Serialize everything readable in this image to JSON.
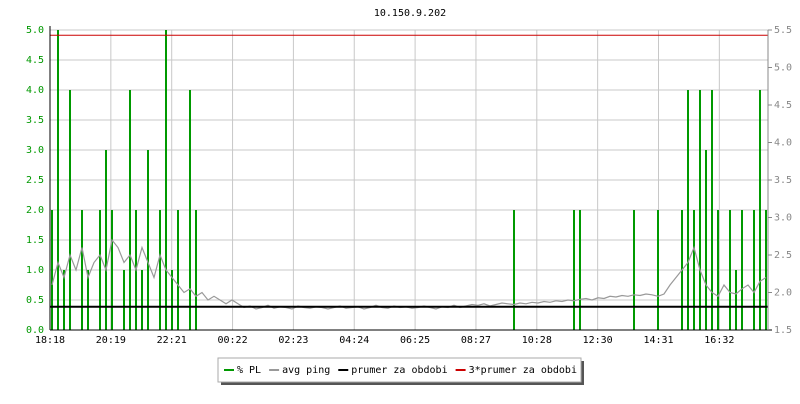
{
  "chart_data": {
    "type": "line",
    "title": "10.150.9.202",
    "xticks": [
      "18:18",
      "20:19",
      "22:21",
      "00:22",
      "02:23",
      "04:24",
      "06:25",
      "08:27",
      "10:28",
      "12:30",
      "14:31",
      "16:32"
    ],
    "ylim": [
      0,
      5
    ],
    "yticks": [
      {
        "value": 0,
        "label": "0.0"
      },
      0.5,
      {
        "value": 1,
        "label": "1.0"
      },
      1.5,
      {
        "value": 2,
        "label": "2.0"
      },
      2.5,
      {
        "value": 3,
        "label": "3.0"
      },
      3.5,
      {
        "value": 4,
        "label": "4.0"
      },
      4.5,
      {
        "value": 5,
        "label": "5.0"
      }
    ],
    "y2lim": [
      1.5,
      5.5
    ],
    "y2ticks": [
      1.5,
      {
        "value": 2,
        "label": "2.0"
      },
      2.5,
      {
        "value": 3,
        "label": "3.0"
      },
      3.5,
      {
        "value": 4,
        "label": "4.0"
      },
      4.5,
      {
        "value": 5,
        "label": "5.0"
      },
      5.5
    ],
    "grid": true,
    "series": [
      {
        "name": "% PL",
        "color": "#009900",
        "style": "bars",
        "values": [
          2,
          5,
          1,
          4,
          0,
          2,
          1,
          0,
          2,
          3,
          2,
          0,
          1,
          4,
          2,
          1,
          3,
          0,
          2,
          5,
          1,
          2,
          0,
          4,
          2,
          0,
          0,
          0,
          0,
          0,
          0,
          0,
          0,
          0,
          0,
          0,
          0,
          0,
          0,
          0,
          0,
          0,
          0,
          0,
          0,
          0,
          0,
          0,
          0,
          0,
          0,
          0,
          0,
          0,
          0,
          0,
          0,
          0,
          0,
          0,
          0,
          0,
          0,
          0,
          0,
          0,
          0,
          0,
          0,
          0,
          0,
          0,
          0,
          0,
          0,
          0,
          0,
          2,
          0,
          0,
          0,
          0,
          0,
          0,
          0,
          0,
          0,
          2,
          2,
          0,
          0,
          0,
          0,
          0,
          0,
          0,
          0,
          2,
          0,
          0,
          0,
          2,
          0,
          0,
          0,
          2,
          4,
          2,
          4,
          3,
          4,
          2,
          0,
          2,
          1,
          2,
          0,
          2,
          4,
          2
        ]
      },
      {
        "name": "avg ping",
        "color": "#999999",
        "axis": "y2",
        "style": "line",
        "values": [
          2.1,
          2.4,
          2.2,
          2.5,
          2.3,
          2.6,
          2.2,
          2.4,
          2.5,
          2.3,
          2.7,
          2.6,
          2.4,
          2.5,
          2.3,
          2.6,
          2.4,
          2.2,
          2.5,
          2.3,
          2.2,
          2.1,
          2.0,
          2.05,
          1.95,
          2.0,
          1.9,
          1.95,
          1.9,
          1.85,
          1.9,
          1.85,
          1.8,
          1.82,
          1.78,
          1.8,
          1.83,
          1.79,
          1.81,
          1.8,
          1.78,
          1.82,
          1.8,
          1.79,
          1.81,
          1.8,
          1.78,
          1.8,
          1.82,
          1.79,
          1.8,
          1.81,
          1.78,
          1.8,
          1.83,
          1.8,
          1.79,
          1.82,
          1.8,
          1.81,
          1.79,
          1.8,
          1.82,
          1.8,
          1.78,
          1.81,
          1.8,
          1.83,
          1.8,
          1.82,
          1.84,
          1.83,
          1.85,
          1.82,
          1.84,
          1.86,
          1.85,
          1.84,
          1.86,
          1.85,
          1.87,
          1.86,
          1.88,
          1.87,
          1.89,
          1.88,
          1.9,
          1.89,
          1.91,
          1.92,
          1.9,
          1.93,
          1.92,
          1.95,
          1.94,
          1.96,
          1.95,
          1.97,
          1.96,
          1.98,
          1.97,
          1.95,
          1.98,
          2.1,
          2.2,
          2.3,
          2.4,
          2.6,
          2.3,
          2.1,
          2.0,
          1.95,
          2.1,
          2.0,
          1.98,
          2.05,
          2.1,
          2.0,
          2.15,
          2.2
        ]
      },
      {
        "name": "prumer za obdobi",
        "color": "#000000",
        "axis": "y2",
        "style": "hline",
        "value": 1.81
      },
      {
        "name": "3*prumer za obdobi",
        "color": "#cc0000",
        "axis": "y2",
        "style": "hline",
        "value": 5.43
      }
    ]
  }
}
